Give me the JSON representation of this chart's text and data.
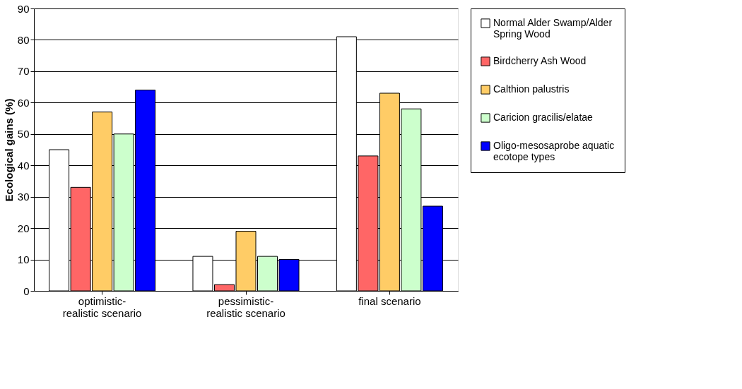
{
  "chart_data": {
    "type": "bar",
    "ylabel": "Ecological gains (%)",
    "categories": [
      "optimistic-realistic scenario",
      "pessimistic-realistic scenario",
      "final scenario"
    ],
    "series": [
      {
        "name": "Normal Alder Swamp/Alder Spring Wood",
        "color": "#ffffff",
        "values": [
          45,
          11,
          81
        ]
      },
      {
        "name": "Birdcherry Ash Wood",
        "color": "#ff6666",
        "values": [
          33,
          2,
          43
        ]
      },
      {
        "name": "Calthion palustris",
        "color": "#ffcc66",
        "values": [
          57,
          19,
          63
        ]
      },
      {
        "name": "Caricion gracilis/elatae",
        "color": "#ccffcc",
        "values": [
          50,
          11,
          58
        ]
      },
      {
        "name": "Oligo-mesosaprobe aquatic ecotope types",
        "color": "#0000ff",
        "values": [
          64,
          10,
          27
        ]
      }
    ],
    "ylim": [
      0,
      90
    ],
    "yticks": [
      0,
      10,
      20,
      30,
      40,
      50,
      60,
      70,
      80,
      90
    ],
    "grid": "y",
    "legend": "right"
  }
}
